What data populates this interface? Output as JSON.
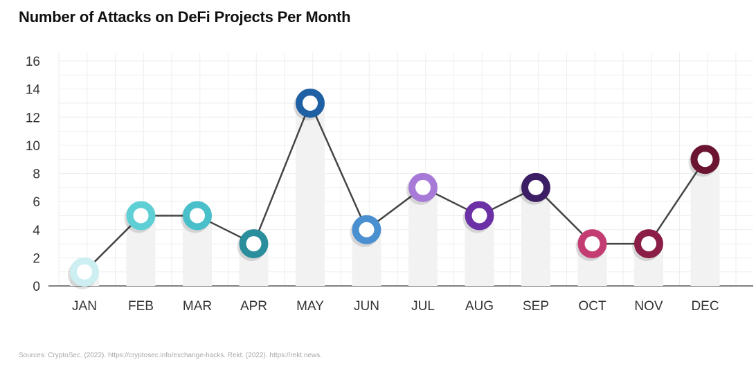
{
  "chart_data": {
    "type": "line",
    "title": "Number of Attacks on DeFi Projects Per Month",
    "xlabel": "",
    "ylabel": "",
    "categories": [
      "JAN",
      "FEB",
      "MAR",
      "APR",
      "MAY",
      "JUN",
      "JUL",
      "AUG",
      "SEP",
      "OCT",
      "NOV",
      "DEC"
    ],
    "series": [
      {
        "name": "Attacks",
        "values": [
          1,
          5,
          5,
          3,
          13,
          4,
          7,
          5,
          7,
          3,
          3,
          9
        ]
      }
    ],
    "ylim": [
      0,
      16
    ],
    "yticks": [
      0,
      2,
      4,
      6,
      8,
      10,
      12,
      14,
      16
    ],
    "grid": true,
    "legend": "none"
  },
  "colors": {
    "line": "#444444",
    "axis": "#555555",
    "grid": "#eeeeee",
    "bar_shadow": "#f2f2f2",
    "markers": [
      "#cdeff2",
      "#5fcfd6",
      "#49bfc9",
      "#2a8e9c",
      "#1f5fa3",
      "#4a8fd0",
      "#a77ad8",
      "#6b2fa6",
      "#3b1e63",
      "#c43d72",
      "#8a1e46",
      "#6a1432"
    ]
  },
  "source": "Sources:  CryptoSec. (2022). https://cryptosec.info/exchange-hacks. Rekt. (2022). https://rekt.news."
}
